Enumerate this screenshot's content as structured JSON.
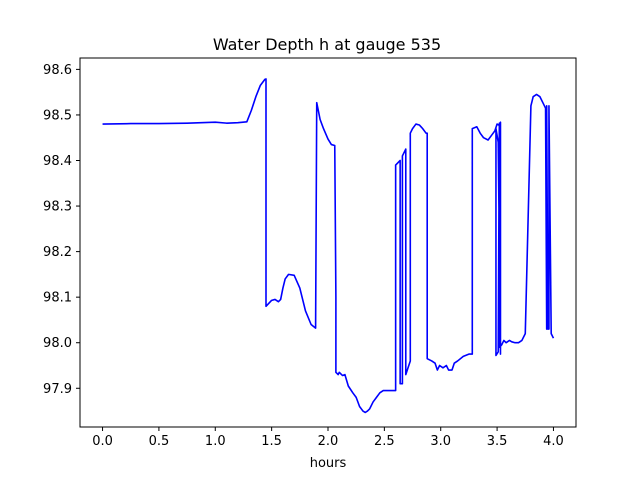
{
  "chart_data": {
    "type": "line",
    "title": "Water Depth h at gauge 535",
    "xlabel": "hours",
    "ylabel": "",
    "xlim": [
      -0.2,
      4.2
    ],
    "ylim": [
      97.815,
      98.625
    ],
    "xticks": [
      0.0,
      0.5,
      1.0,
      1.5,
      2.0,
      2.5,
      3.0,
      3.5,
      4.0
    ],
    "xtick_labels": [
      "0.0",
      "0.5",
      "1.0",
      "1.5",
      "2.0",
      "2.5",
      "3.0",
      "3.5",
      "4.0"
    ],
    "yticks": [
      97.9,
      98.0,
      98.1,
      98.2,
      98.3,
      98.4,
      98.5,
      98.6
    ],
    "ytick_labels": [
      "97.9",
      "98.0",
      "98.1",
      "98.2",
      "98.3",
      "98.4",
      "98.5",
      "98.6"
    ],
    "grid": false,
    "line_color": "#0000ff",
    "series": [
      {
        "x": [
          0.0,
          0.25,
          0.5,
          0.75,
          1.0,
          1.1,
          1.2,
          1.28,
          1.32,
          1.36,
          1.4,
          1.44,
          1.45,
          1.45,
          1.5,
          1.53,
          1.56,
          1.58,
          1.6,
          1.62,
          1.65,
          1.7,
          1.75,
          1.78,
          1.8,
          1.85,
          1.89,
          1.9,
          1.9,
          1.93,
          1.96,
          2.0,
          2.03,
          2.06,
          2.07,
          2.07,
          2.09,
          2.1,
          2.12,
          2.13,
          2.15,
          2.18,
          2.22,
          2.25,
          2.28,
          2.31,
          2.33,
          2.35,
          2.37,
          2.4,
          2.43,
          2.46,
          2.49,
          2.52,
          2.55,
          2.58,
          2.6,
          2.6,
          2.64,
          2.64,
          2.66,
          2.66,
          2.69,
          2.69,
          2.71,
          2.73,
          2.73,
          2.75,
          2.78,
          2.81,
          2.84,
          2.87,
          2.88,
          2.88,
          2.92,
          2.95,
          2.97,
          2.99,
          3.02,
          3.05,
          3.07,
          3.1,
          3.12,
          3.15,
          3.2,
          3.25,
          3.28,
          3.28,
          3.32,
          3.35,
          3.38,
          3.42,
          3.45,
          3.48,
          3.5,
          3.52,
          3.53,
          3.53,
          3.51,
          3.49,
          3.49,
          3.51,
          3.52,
          3.52,
          3.54,
          3.56,
          3.58,
          3.61,
          3.63,
          3.66,
          3.69,
          3.72,
          3.75,
          3.8,
          3.81,
          3.82,
          3.85,
          3.88,
          3.91,
          3.93,
          3.94,
          3.94,
          3.95,
          3.96,
          3.96,
          3.98,
          4.0
        ],
        "y": [
          98.48,
          98.481,
          98.481,
          98.482,
          98.484,
          98.482,
          98.483,
          98.485,
          98.51,
          98.54,
          98.565,
          98.578,
          98.579,
          98.08,
          98.093,
          98.095,
          98.09,
          98.095,
          98.12,
          98.14,
          98.15,
          98.148,
          98.12,
          98.09,
          98.07,
          98.04,
          98.032,
          98.527,
          98.527,
          98.49,
          98.47,
          98.447,
          98.435,
          98.433,
          98.1,
          97.935,
          97.93,
          97.935,
          97.93,
          97.928,
          97.93,
          97.905,
          97.89,
          97.88,
          97.86,
          97.85,
          97.847,
          97.85,
          97.855,
          97.87,
          97.88,
          97.89,
          97.895,
          97.895,
          97.895,
          97.895,
          97.895,
          98.39,
          98.4,
          97.91,
          97.91,
          98.41,
          98.425,
          97.93,
          97.945,
          97.96,
          98.46,
          98.47,
          98.48,
          98.478,
          98.47,
          98.46,
          98.46,
          97.965,
          97.96,
          97.955,
          97.94,
          97.95,
          97.945,
          97.95,
          97.94,
          97.94,
          97.955,
          97.96,
          97.97,
          97.975,
          97.975,
          98.47,
          98.474,
          98.46,
          98.45,
          98.445,
          98.455,
          98.465,
          98.48,
          98.477,
          98.484,
          97.975,
          98.44,
          98.47,
          97.972,
          97.98,
          98.482,
          97.99,
          97.995,
          98.005,
          98.0,
          98.005,
          98.002,
          98.0,
          98.0,
          98.005,
          98.02,
          98.52,
          98.53,
          98.54,
          98.545,
          98.54,
          98.525,
          98.515,
          98.03,
          98.52,
          98.03,
          98.03,
          98.52,
          98.02,
          98.01
        ]
      }
    ]
  }
}
